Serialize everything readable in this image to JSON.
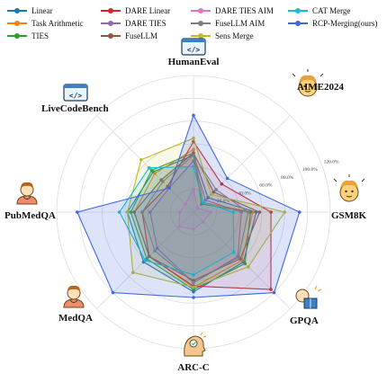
{
  "chart_data": {
    "type": "radar",
    "axes": [
      "HumanEval",
      "AIME2024",
      "GSM8K",
      "GPQA",
      "ARC-C",
      "MedQA",
      "PubMedQA",
      "LiveCodeBench"
    ],
    "rmax": 1.2,
    "ring_ticks": [
      0.2,
      0.4,
      0.6,
      0.8,
      1.0,
      1.2
    ],
    "ring_tick_labels": [
      "20.0%",
      "40.0%",
      "60.0%",
      "80.0%",
      "100.0%",
      "120.0%"
    ],
    "grid": true,
    "legend_position": "top",
    "series": [
      {
        "name": "Linear",
        "color": "#1f77b4",
        "values": [
          0.5,
          0.18,
          0.55,
          0.62,
          0.7,
          0.62,
          0.58,
          0.5
        ]
      },
      {
        "name": "Task Arithmetic",
        "color": "#ff7f0e",
        "values": [
          0.55,
          0.12,
          0.52,
          0.6,
          0.66,
          0.55,
          0.52,
          0.48
        ]
      },
      {
        "name": "TIES",
        "color": "#2ca02c",
        "values": [
          0.52,
          0.1,
          0.5,
          0.64,
          0.68,
          0.58,
          0.55,
          0.52
        ]
      },
      {
        "name": "DARE Linear",
        "color": "#d62728",
        "values": [
          0.62,
          0.35,
          0.68,
          0.96,
          0.65,
          0.55,
          0.45,
          0.32
        ]
      },
      {
        "name": "DARE TIES",
        "color": "#9467bd",
        "values": [
          0.45,
          0.15,
          0.42,
          0.55,
          0.62,
          0.45,
          0.38,
          0.3
        ]
      },
      {
        "name": "FuseLLM",
        "color": "#8c564b",
        "values": [
          0.52,
          0.25,
          0.58,
          0.58,
          0.6,
          0.55,
          0.52,
          0.4
        ]
      },
      {
        "name": "DARE TIES AIM",
        "color": "#e377c2",
        "values": [
          0.2,
          0.05,
          0.15,
          0.12,
          0.15,
          0.18,
          0.12,
          0.1
        ]
      },
      {
        "name": "FuseLLM AIM",
        "color": "#7f7f7f",
        "values": [
          0.5,
          0.28,
          0.48,
          0.56,
          0.62,
          0.48,
          0.45,
          0.38
        ]
      },
      {
        "name": "Sens Merge",
        "color": "#bcbd22",
        "values": [
          0.65,
          0.22,
          0.8,
          0.68,
          0.66,
          0.75,
          0.58,
          0.65
        ]
      },
      {
        "name": "CAT Merge",
        "color": "#17becf",
        "values": [
          0.4,
          0.12,
          0.35,
          0.5,
          0.55,
          0.6,
          0.65,
          0.55
        ]
      },
      {
        "name": "RCP-Merging(ours)",
        "color": "#4169e1",
        "values": [
          0.85,
          0.42,
          0.93,
          1.0,
          0.75,
          1.0,
          1.02,
          0.3
        ],
        "fill_opacity": 0.18
      }
    ]
  },
  "icons": [
    "code-icon",
    "thinking-face-icon",
    "thinking-face-icon",
    "reading-person-icon",
    "thinking-head-icon",
    "doctor-icon",
    "doctor-icon",
    "code-icon"
  ]
}
